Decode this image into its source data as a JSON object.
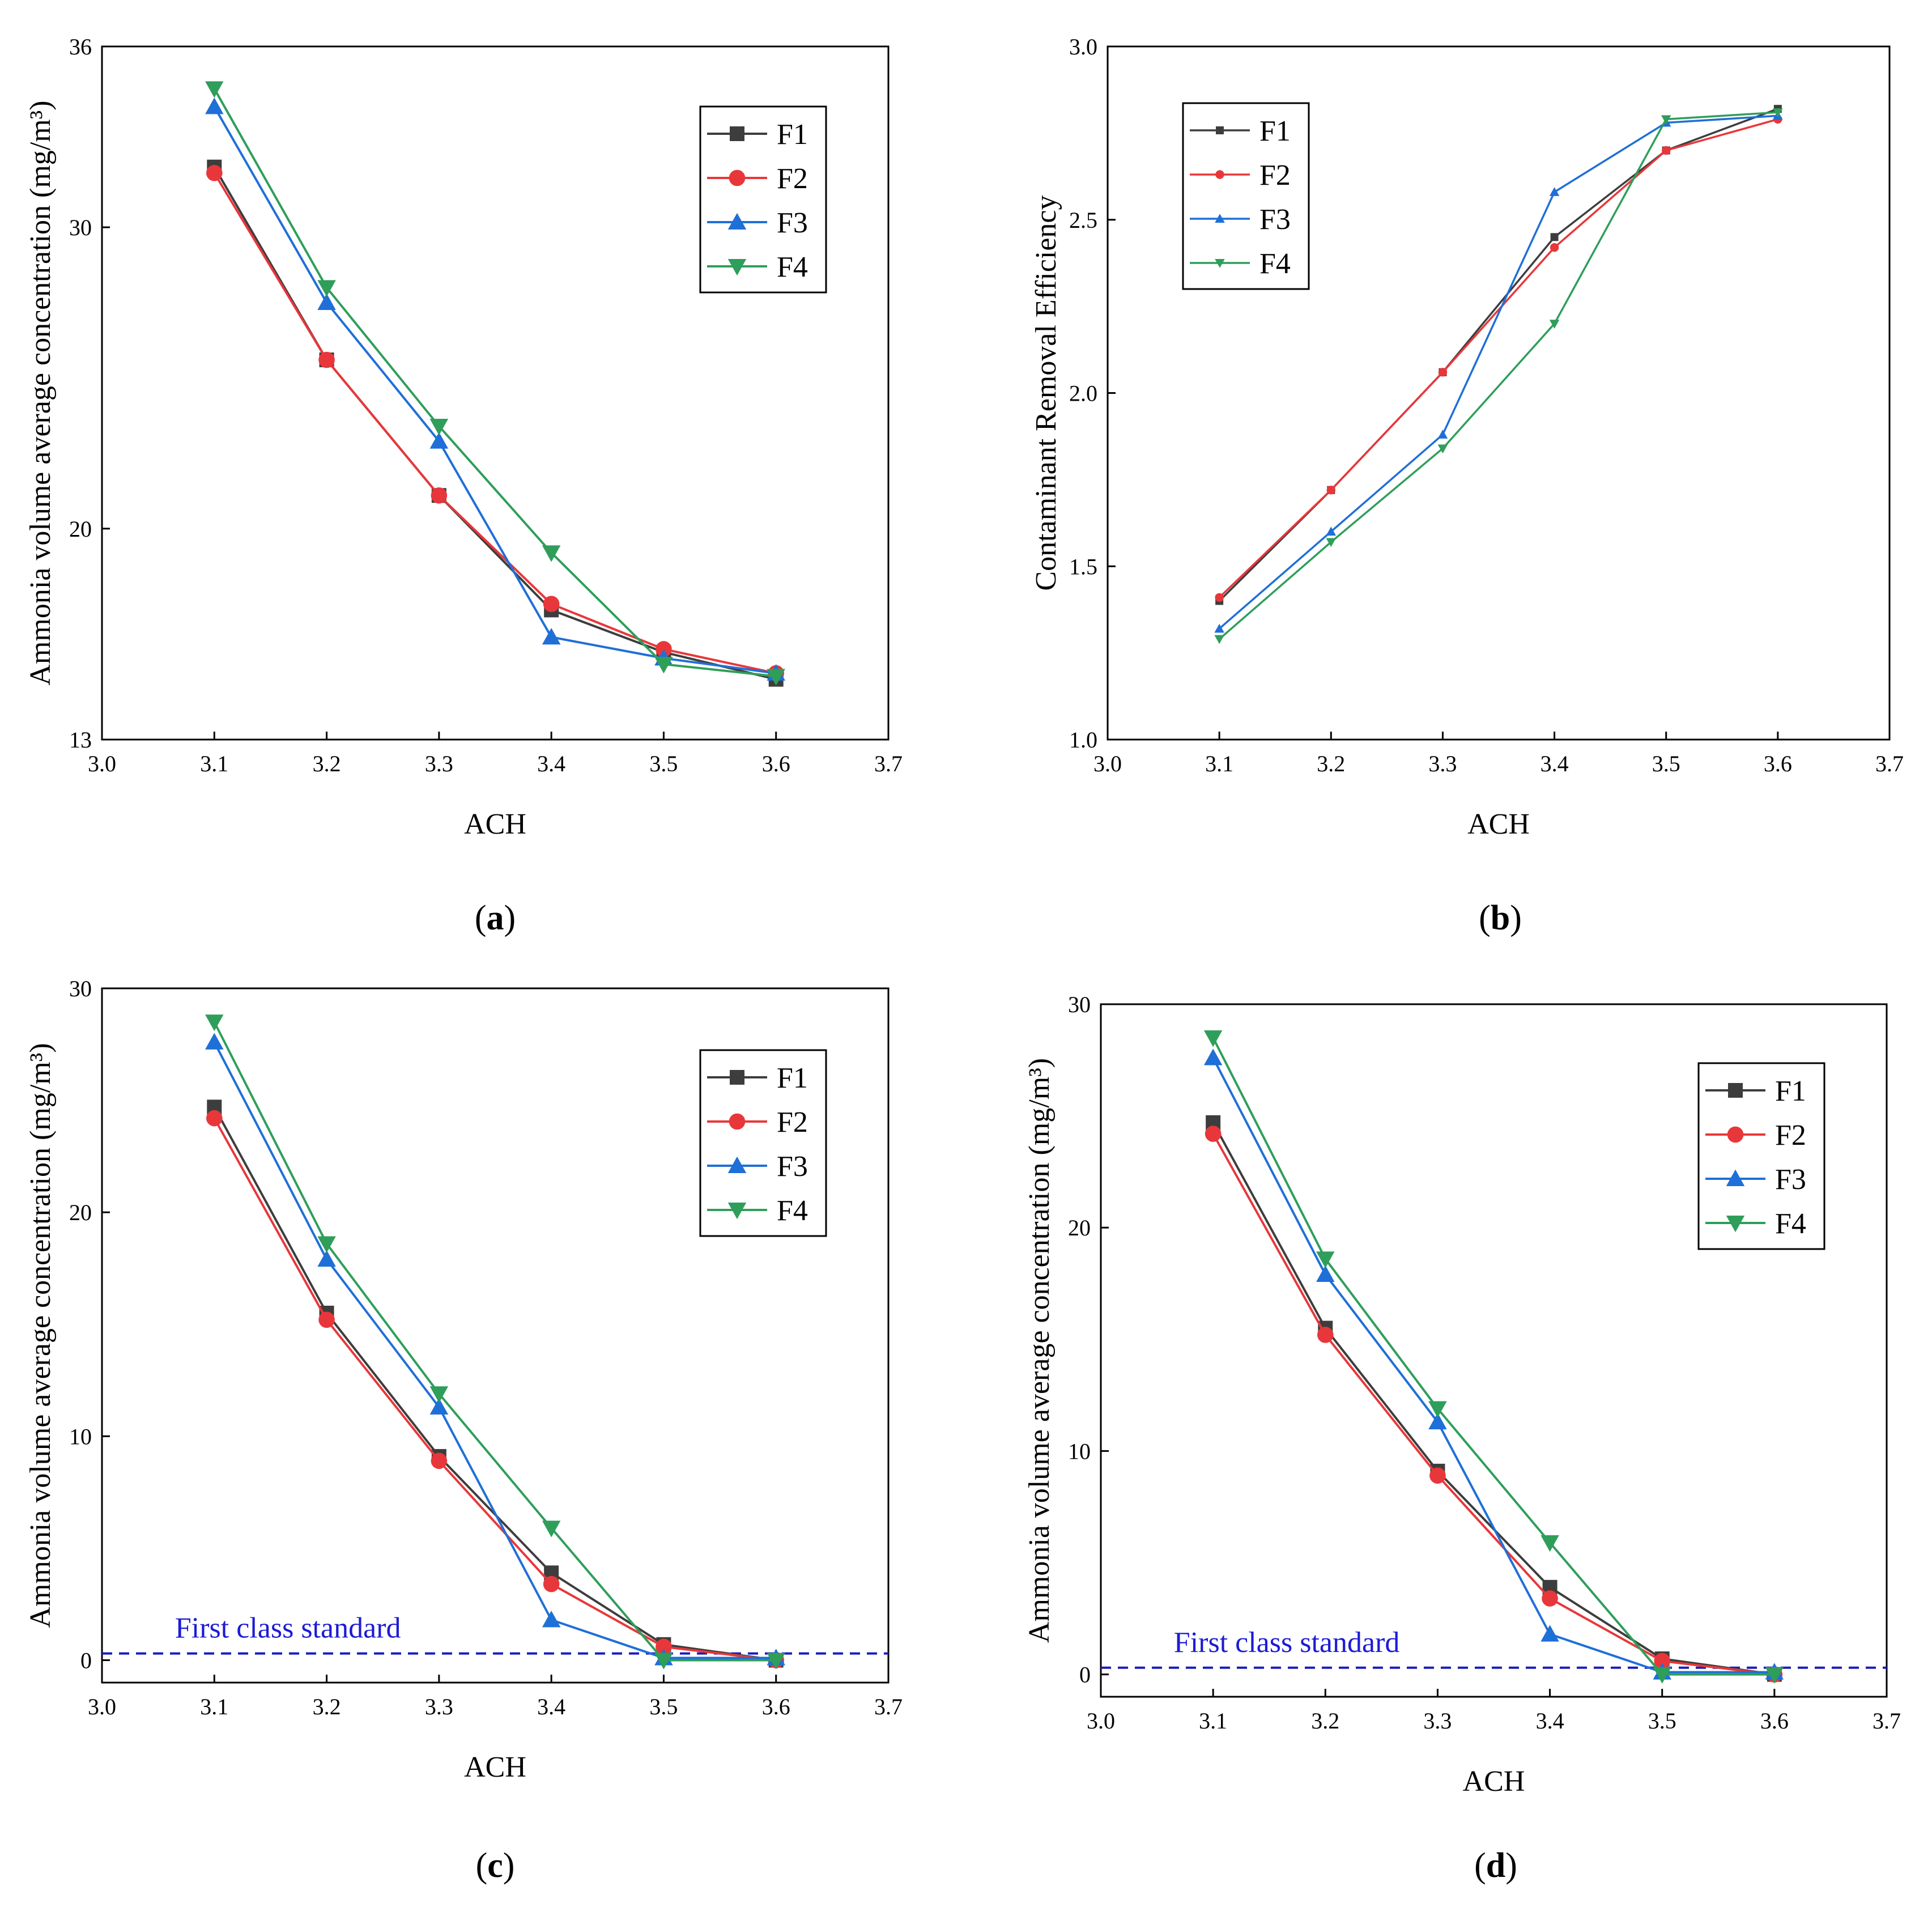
{
  "colors": {
    "F1": "#3d3d3d",
    "F2": "#e8373a",
    "F3": "#1f6fd8",
    "F4": "#2f9e5a",
    "standard_line": "#1b1bc0"
  },
  "chart_data": [
    {
      "id": "a",
      "type": "line",
      "caption_open": "(",
      "caption_letter": "a",
      "caption_close": ")",
      "xlabel": "ACH",
      "ylabel": "Ammonia volume average concentration (mg/m³)",
      "xlim": [
        3.0,
        3.7
      ],
      "ylim": [
        13,
        36
      ],
      "xticks": [
        "3.0",
        "3.1",
        "3.2",
        "3.3",
        "3.4",
        "3.5",
        "3.6",
        "3.7"
      ],
      "yticks": [
        "13",
        "20",
        "30",
        "36"
      ],
      "x": [
        3.1,
        3.2,
        3.3,
        3.4,
        3.5,
        3.6
      ],
      "legend_position": "top-right",
      "marker_size": "large",
      "series": [
        {
          "name": "F1",
          "marker": "square",
          "values": [
            32.0,
            25.6,
            21.1,
            17.3,
            15.9,
            15.0
          ]
        },
        {
          "name": "F2",
          "marker": "circle",
          "values": [
            31.8,
            25.6,
            21.1,
            17.5,
            16.0,
            15.2
          ]
        },
        {
          "name": "F3",
          "marker": "triangle-up",
          "values": [
            34.0,
            27.5,
            22.9,
            16.4,
            15.7,
            15.2
          ]
        },
        {
          "name": "F4",
          "marker": "triangle-down",
          "values": [
            34.6,
            28.0,
            23.4,
            19.2,
            15.5,
            15.1
          ]
        }
      ]
    },
    {
      "id": "b",
      "type": "line",
      "caption_open": "(",
      "caption_letter": "b",
      "caption_close": ")",
      "xlabel": "ACH",
      "ylabel": "Contaminant Removal Efficiency",
      "xlim": [
        3.0,
        3.7
      ],
      "ylim": [
        1.0,
        3.0
      ],
      "xticks": [
        "3.0",
        "3.1",
        "3.2",
        "3.3",
        "3.4",
        "3.5",
        "3.6",
        "3.7"
      ],
      "yticks": [
        "1.0",
        "1.5",
        "2.0",
        "2.5",
        "3.0"
      ],
      "x": [
        3.1,
        3.2,
        3.3,
        3.4,
        3.5,
        3.6
      ],
      "legend_position": "top-left",
      "marker_size": "small",
      "series": [
        {
          "name": "F1",
          "marker": "square",
          "values": [
            1.4,
            1.72,
            2.06,
            2.45,
            2.7,
            2.82
          ]
        },
        {
          "name": "F2",
          "marker": "circle",
          "values": [
            1.41,
            1.72,
            2.06,
            2.42,
            2.7,
            2.79
          ]
        },
        {
          "name": "F3",
          "marker": "triangle-up",
          "values": [
            1.32,
            1.6,
            1.88,
            2.58,
            2.78,
            2.8
          ]
        },
        {
          "name": "F4",
          "marker": "triangle-down",
          "values": [
            1.29,
            1.57,
            1.84,
            2.2,
            2.79,
            2.81
          ]
        }
      ]
    },
    {
      "id": "c",
      "type": "line",
      "caption_open": "(",
      "caption_letter": "c",
      "caption_close": ")",
      "xlabel": "ACH",
      "ylabel": "Ammonia volume average concentration (mg/m³)",
      "xlim": [
        3.0,
        3.7
      ],
      "ylim": [
        -1,
        30
      ],
      "xticks": [
        "3.0",
        "3.1",
        "3.2",
        "3.3",
        "3.4",
        "3.5",
        "3.6",
        "3.7"
      ],
      "yticks": [
        "0",
        "10",
        "20",
        "30"
      ],
      "x": [
        3.1,
        3.2,
        3.3,
        3.4,
        3.5,
        3.6
      ],
      "legend_position": "top-right",
      "marker_size": "large",
      "reference_line": {
        "y": 0.3,
        "label": "First class standard"
      },
      "series": [
        {
          "name": "F1",
          "marker": "square",
          "values": [
            24.7,
            15.5,
            9.1,
            3.9,
            0.7,
            0.0
          ]
        },
        {
          "name": "F2",
          "marker": "circle",
          "values": [
            24.2,
            15.2,
            8.9,
            3.4,
            0.6,
            0.0
          ]
        },
        {
          "name": "F3",
          "marker": "triangle-up",
          "values": [
            27.6,
            17.9,
            11.3,
            1.8,
            0.1,
            0.1
          ]
        },
        {
          "name": "F4",
          "marker": "triangle-down",
          "values": [
            28.5,
            18.6,
            11.9,
            5.9,
            0.0,
            0.0
          ]
        }
      ]
    },
    {
      "id": "d",
      "type": "line",
      "caption_open": "(",
      "caption_letter": "d",
      "caption_close": ")",
      "xlabel": "ACH",
      "ylabel": "Ammonia volume average concentration (mg/m³)",
      "xlim": [
        3.0,
        3.7
      ],
      "ylim": [
        -1,
        30
      ],
      "xticks": [
        "3.0",
        "3.1",
        "3.2",
        "3.3",
        "3.4",
        "3.5",
        "3.6",
        "3.7"
      ],
      "yticks": [
        "0",
        "10",
        "20",
        "30"
      ],
      "x": [
        3.1,
        3.2,
        3.3,
        3.4,
        3.5,
        3.6
      ],
      "legend_position": "top-right",
      "marker_size": "large",
      "reference_line": {
        "y": 0.3,
        "label": "First class standard"
      },
      "series": [
        {
          "name": "F1",
          "marker": "square",
          "values": [
            24.7,
            15.5,
            9.1,
            3.9,
            0.7,
            0.0
          ]
        },
        {
          "name": "F2",
          "marker": "circle",
          "values": [
            24.2,
            15.2,
            8.9,
            3.4,
            0.6,
            0.0
          ]
        },
        {
          "name": "F3",
          "marker": "triangle-up",
          "values": [
            27.6,
            17.9,
            11.3,
            1.8,
            0.1,
            0.1
          ]
        },
        {
          "name": "F4",
          "marker": "triangle-down",
          "values": [
            28.5,
            18.6,
            11.9,
            5.9,
            0.0,
            0.0
          ]
        }
      ]
    }
  ]
}
